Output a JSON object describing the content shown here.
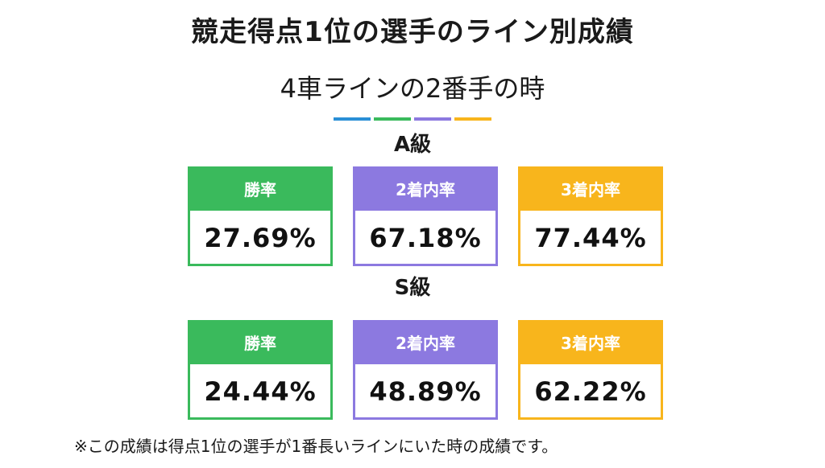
{
  "title": "競走得点1位の選手のライン別成績",
  "subtitle": "4車ラインの2番手の時",
  "divider_colors": [
    "#2a8fd6",
    "#3aba5c",
    "#8c79e0",
    "#f8b51c"
  ],
  "classes": [
    {
      "label": "A級",
      "cards": [
        {
          "header": "勝率",
          "value": "27.69%",
          "color": "#3aba5c"
        },
        {
          "header": "2着内率",
          "value": "67.18%",
          "color": "#8c79e0"
        },
        {
          "header": "3着内率",
          "value": "77.44%",
          "color": "#f8b51c"
        }
      ]
    },
    {
      "label": "S級",
      "cards": [
        {
          "header": "勝率",
          "value": "24.44%",
          "color": "#3aba5c"
        },
        {
          "header": "2着内率",
          "value": "48.89%",
          "color": "#8c79e0"
        },
        {
          "header": "3着内率",
          "value": "62.22%",
          "color": "#f8b51c"
        }
      ]
    }
  ],
  "footnote": "※この成績は得点1位の選手が1番長いラインにいた時の成績です。"
}
